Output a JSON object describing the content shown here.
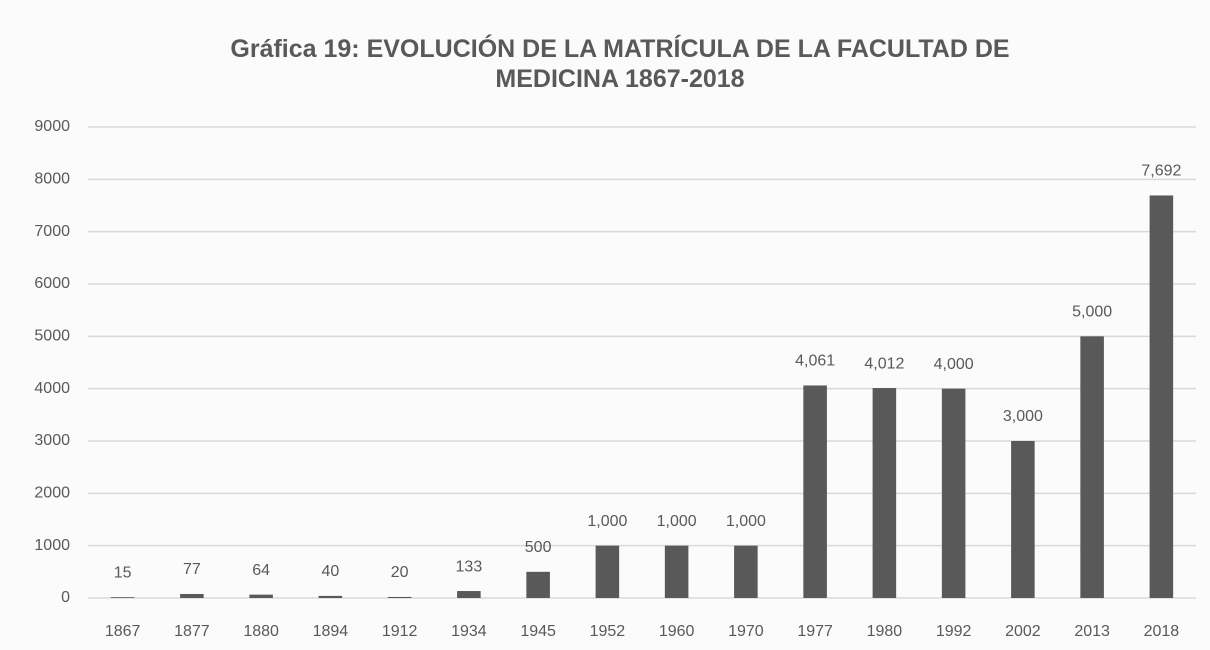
{
  "chart_data": {
    "type": "bar",
    "title": "Gráfica 19: EVOLUCIÓN DE LA MATRÍCULA DE LA FACULTAD DE MEDICINA 1867-2018",
    "categories": [
      "1867",
      "1877",
      "1880",
      "1894",
      "1912",
      "1934",
      "1945",
      "1952",
      "1960",
      "1970",
      "1977",
      "1980",
      "1992",
      "2002",
      "2013",
      "2018"
    ],
    "values": [
      15,
      77,
      64,
      40,
      20,
      133,
      500,
      1000,
      1000,
      1000,
      4061,
      4012,
      4000,
      3000,
      5000,
      7692
    ],
    "value_labels": [
      "15",
      "77",
      "64",
      "40",
      "20",
      "133",
      "500",
      "1,000",
      "1,000",
      "1,000",
      "4,061",
      "4,012",
      "4,000",
      "3,000",
      "5,000",
      "7,692"
    ],
    "color": "#595959",
    "ylim": [
      0,
      9000
    ],
    "yticks": [
      0,
      1000,
      2000,
      3000,
      4000,
      5000,
      6000,
      7000,
      8000,
      9000
    ],
    "grid": true
  }
}
